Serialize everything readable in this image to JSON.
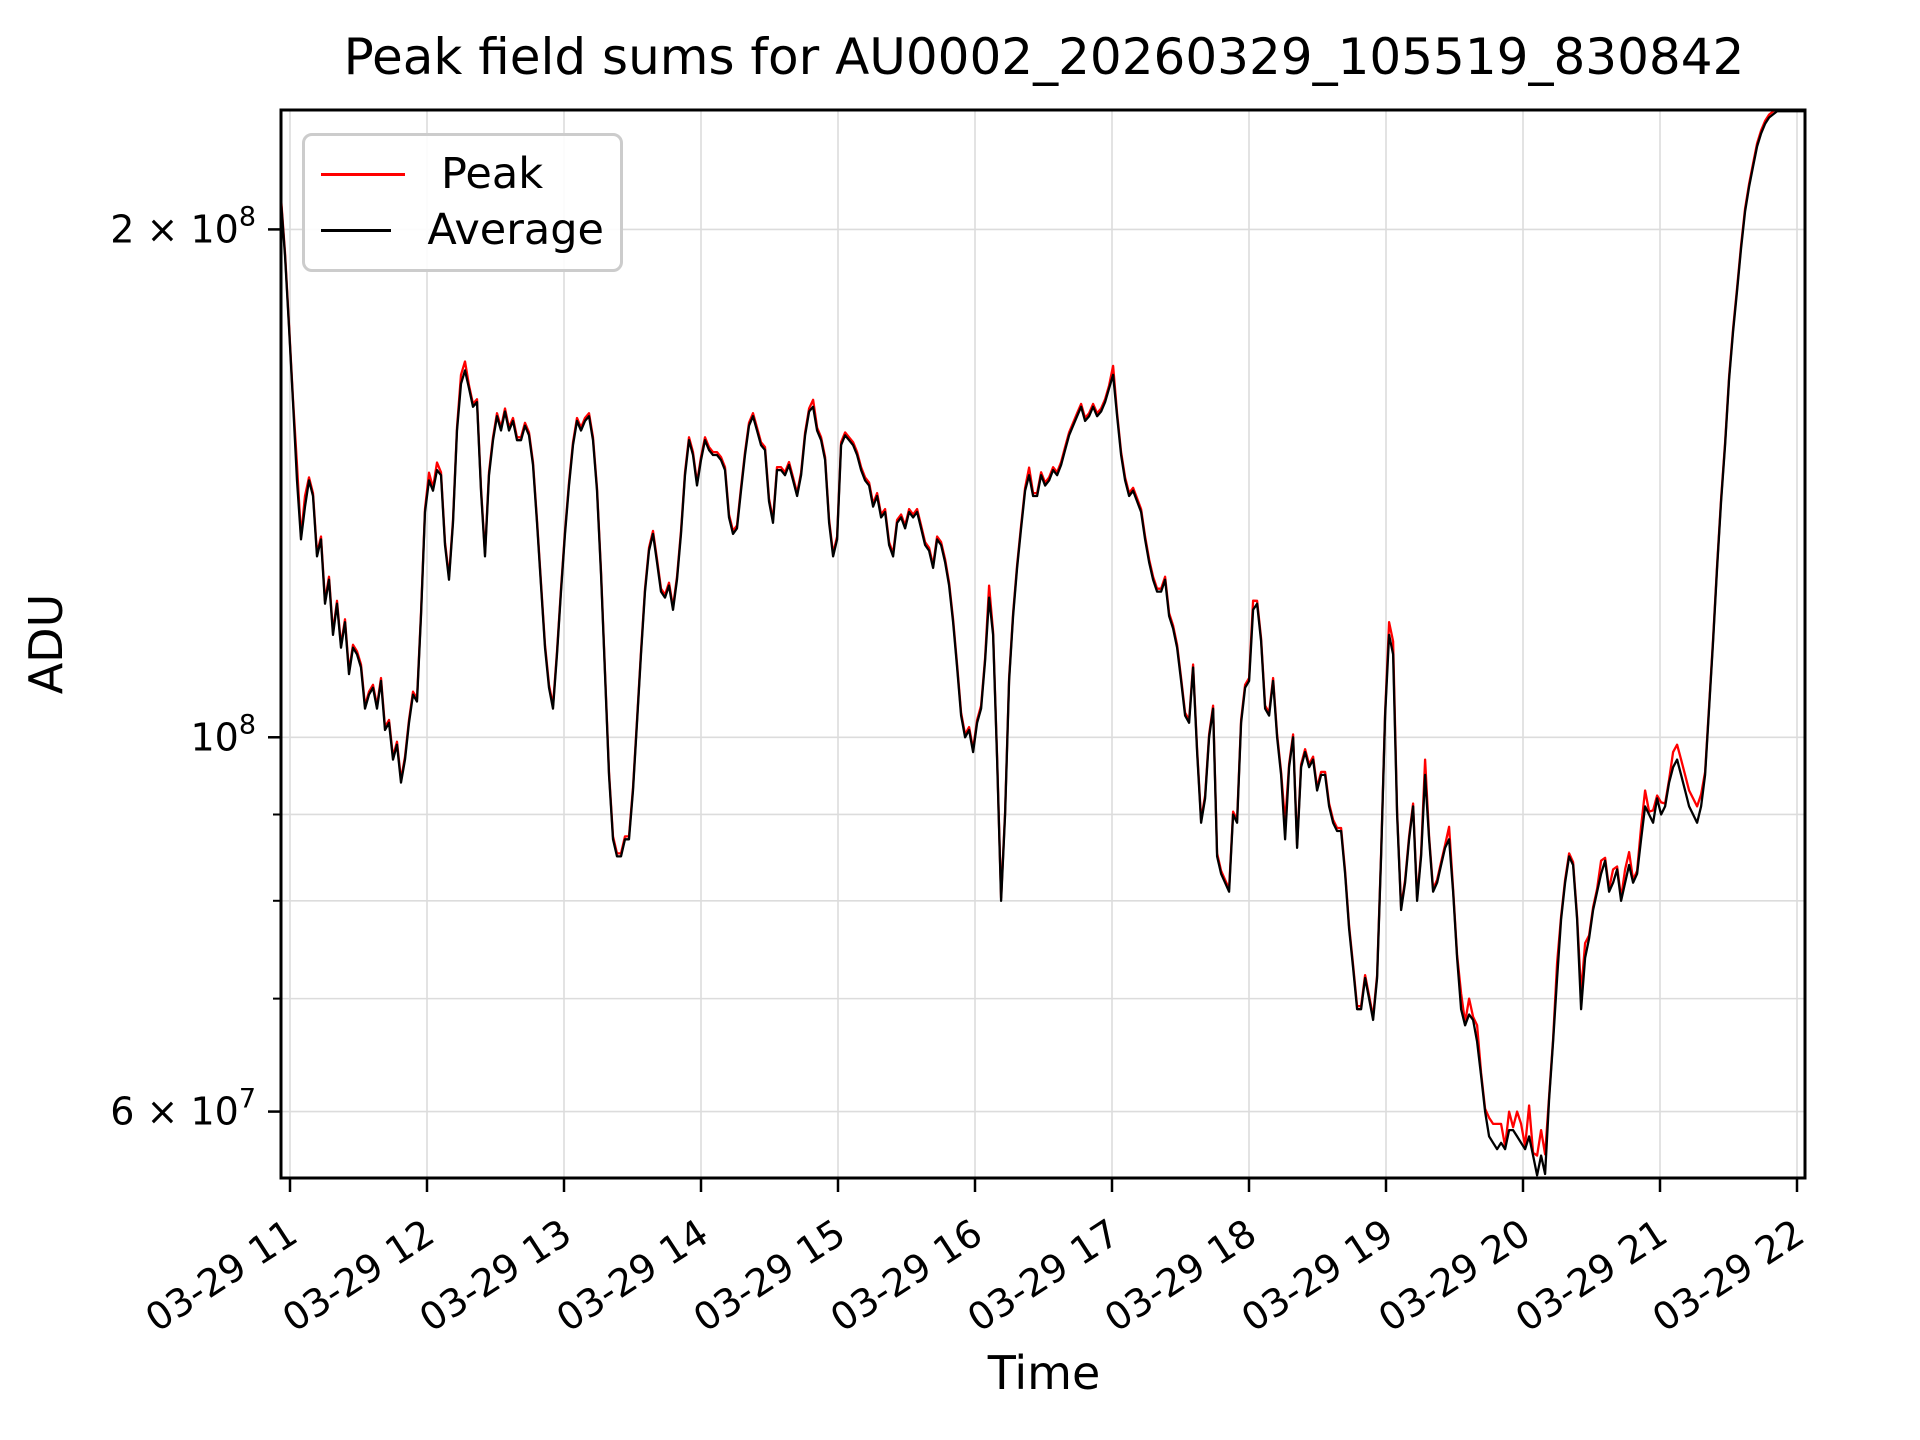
{
  "title": "Peak field sums for AU0002_20260329_105519_830842",
  "axes": {
    "x_label": "Time",
    "y_label": "ADU",
    "x_tick_labels": [
      "03-29 11",
      "03-29 12",
      "03-29 13",
      "03-29 14",
      "03-29 15",
      "03-29 16",
      "03-29 17",
      "03-29 18",
      "03-29 19",
      "03-29 20",
      "03-29 21",
      "03-29 22"
    ],
    "x_tick_hours": [
      11,
      12,
      13,
      14,
      15,
      16,
      17,
      18,
      19,
      20,
      21,
      22
    ],
    "y_major_tick_labels": [
      {
        "mantissa": "2 × 10",
        "exp": "8",
        "value_millions": 200
      },
      {
        "mantissa": "10",
        "exp": "8",
        "value_millions": 100
      },
      {
        "mantissa": "6 × 10",
        "exp": "7",
        "value_millions": 60
      }
    ],
    "y_minor_ticks_millions": [
      90,
      80,
      70
    ],
    "y_scale": "log",
    "ylim_millions": [
      54.8,
      235.4
    ],
    "xlim_hours": [
      10.9343,
      22.059
    ]
  },
  "legend": {
    "entries": [
      {
        "label": "Peak",
        "color": "#ff0000"
      },
      {
        "label": "Average",
        "color": "#000000"
      }
    ]
  },
  "styles": {
    "grid_color": "#dcdcdc",
    "spine_color": "#000000",
    "peak_color": "#ff0000",
    "average_color": "#000000",
    "background": "#ffffff"
  },
  "chart_data": {
    "type": "line",
    "title": "Peak field sums for AU0002_20260329_105519_830842",
    "xlabel": "Time",
    "ylabel": "ADU",
    "x_unit": "decimal hours on 03-29",
    "x_start_hour": 10.9343,
    "x_step_hour": 0.0292,
    "value_unit": "ADU",
    "value_scale": 1000000,
    "y_axis": "log",
    "ylim_millions": [
      54.8,
      235.4
    ],
    "legend_position": "upper left",
    "grid": true,
    "series": [
      {
        "name": "Average",
        "color": "#000000",
        "values_millions": [
          208,
          193,
          175,
          158,
          142,
          131,
          137,
          142,
          139,
          128,
          131,
          120,
          124,
          115,
          120,
          113,
          117,
          109,
          113,
          112,
          110,
          104,
          106,
          107,
          104,
          108,
          101,
          102,
          97,
          99,
          94,
          97,
          102,
          106,
          105,
          118,
          136,
          142,
          140,
          144,
          143,
          130,
          124,
          134,
          152,
          162,
          165,
          161,
          157,
          158,
          140,
          128,
          143,
          150,
          155,
          152,
          156,
          152,
          154,
          150,
          150,
          153,
          151,
          145,
          134,
          123,
          113,
          107,
          104,
          112,
          122,
          132,
          141,
          149,
          154,
          152,
          154,
          155,
          150,
          140,
          125,
          109,
          95,
          87,
          85,
          85,
          87,
          87,
          93,
          102,
          112,
          122,
          129,
          132,
          127,
          122,
          121,
          123,
          119,
          124,
          132,
          143,
          150,
          147,
          141,
          146,
          150,
          148,
          147,
          147,
          146,
          144,
          135,
          132,
          133,
          140,
          147,
          153,
          155,
          152,
          149,
          148,
          138,
          134,
          144,
          144,
          143,
          145,
          142,
          139,
          143,
          151,
          156,
          157,
          152,
          150,
          146,
          134,
          128,
          131,
          149,
          151,
          150,
          149,
          147,
          144,
          142,
          141,
          137,
          139,
          135,
          136,
          130,
          128,
          134,
          135,
          133,
          136,
          135,
          136,
          133,
          130,
          129,
          126,
          131,
          130,
          127,
          123,
          117,
          110,
          103,
          100,
          101,
          98,
          102,
          104,
          111,
          121,
          115,
          97,
          80,
          90,
          108,
          118,
          126,
          133,
          140,
          143,
          139,
          139,
          143,
          141,
          142,
          144,
          143,
          145,
          148,
          151,
          153,
          155,
          157,
          154,
          155,
          157,
          155,
          156,
          158,
          161,
          164,
          155,
          147,
          142,
          139,
          140,
          138,
          136,
          131,
          127,
          124,
          122,
          122,
          124,
          118,
          116,
          113,
          108,
          103,
          102,
          110,
          98,
          89,
          92,
          100,
          104,
          85,
          83,
          82,
          81,
          90,
          89,
          102,
          107,
          108,
          119,
          120,
          114,
          104,
          103,
          108,
          100,
          95,
          87,
          96,
          100,
          86,
          96,
          98,
          96,
          97,
          93,
          95,
          95,
          91,
          89,
          88,
          88,
          83,
          77,
          73,
          69,
          69,
          72,
          70,
          68,
          72,
          85,
          103,
          115,
          112,
          90,
          79,
          82,
          87,
          91,
          80,
          85,
          95,
          87,
          81,
          82,
          84,
          86,
          87,
          81,
          74,
          69,
          67.5,
          68.5,
          68,
          66,
          63,
          60,
          58,
          57.5,
          57,
          57.5,
          57,
          58.5,
          58.5,
          58,
          57.5,
          57,
          58,
          56.5,
          55,
          56.5,
          55.1,
          61,
          66,
          72,
          78,
          82,
          85,
          84,
          78,
          69,
          74,
          76,
          79,
          81,
          83,
          84.5,
          81,
          82,
          83.5,
          80,
          82,
          84,
          82,
          83,
          87,
          91,
          90,
          89,
          92,
          90,
          91,
          94,
          96,
          97,
          95,
          93,
          91,
          90,
          89,
          91,
          95,
          104,
          114,
          126,
          138,
          149,
          163,
          174,
          184,
          195,
          205,
          212,
          218,
          224,
          228,
          231,
          233,
          234,
          235,
          235,
          235,
          235,
          235,
          235,
          235,
          235
        ]
      },
      {
        "name": "Peak",
        "color": "#ff0000",
        "derivation": "average values plus small positive excursions; red visible only where it pokes past the black line",
        "default_delta_fraction": 0.004,
        "spike_deltas_millions_by_index": {
          "4": 3,
          "6": 2,
          "37": 1.5,
          "39": 1.5,
          "45": 2,
          "46": 2,
          "133": 1.5,
          "177": 2,
          "187": 1.5,
          "208": 2,
          "243": 1.5,
          "251": 2,
          "277": 2,
          "278": 2,
          "286": 2,
          "292": 1.5,
          "295": 1.5,
          "297": 1.5,
          "299": 1.5,
          "302": 1.5,
          "303": 1.5,
          "304": 2,
          "305": 1.5,
          "307": 1.5,
          "309": 2,
          "310": 1.5,
          "312": 2.5,
          "314": 1.5,
          "315": 2,
          "316": 1.5,
          "319": 1.5,
          "325": 1.5,
          "326": 1.5,
          "330": 1.5,
          "333": 1.5,
          "336": 1.5,
          "337": 1.5,
          "340": 1.5,
          "341": 2,
          "343": 1.5,
          "345": 1.5,
          "348": 2,
          "349": 2,
          "350": 2,
          "351": 2,
          "352": 2,
          "353": 2,
          "354": 2,
          "355": 1.5
        }
      }
    ]
  }
}
